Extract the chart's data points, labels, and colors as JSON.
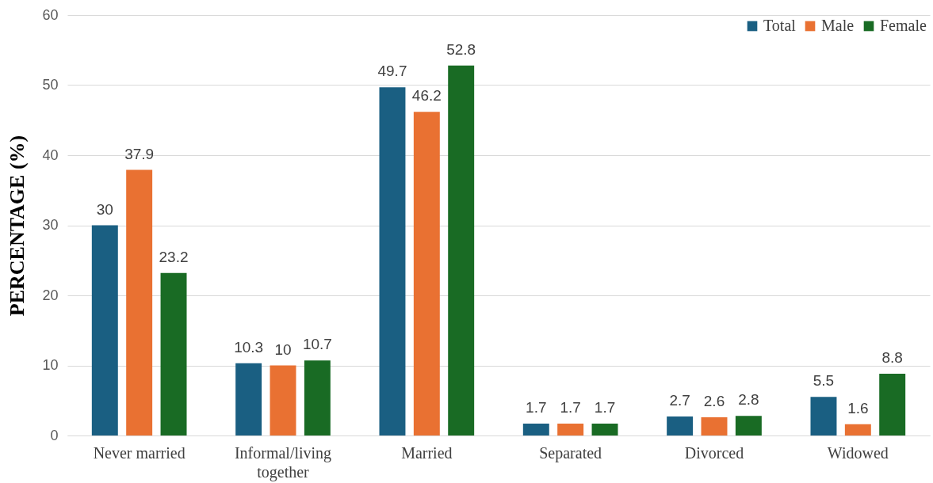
{
  "chart_data": {
    "type": "bar",
    "ylabel": "PERCENTAGE (%)",
    "categories": [
      "Never married",
      "Informal/living together",
      "Married",
      "Separated",
      "Divorced",
      "Widowed"
    ],
    "series": [
      {
        "name": "Total",
        "color": "#1a5f82",
        "values": [
          30,
          10.3,
          49.7,
          1.7,
          2.7,
          5.5
        ]
      },
      {
        "name": "Male",
        "color": "#e97132",
        "values": [
          37.9,
          10,
          46.2,
          1.7,
          2.6,
          1.6
        ]
      },
      {
        "name": "Female",
        "color": "#196b24",
        "values": [
          23.2,
          10.7,
          52.8,
          1.7,
          2.8,
          8.8
        ]
      }
    ],
    "ylim": [
      0,
      60
    ],
    "yticks": [
      0,
      10,
      20,
      30,
      40,
      50,
      60
    ],
    "grid": "y",
    "legend": "top right",
    "data_labels": true
  }
}
